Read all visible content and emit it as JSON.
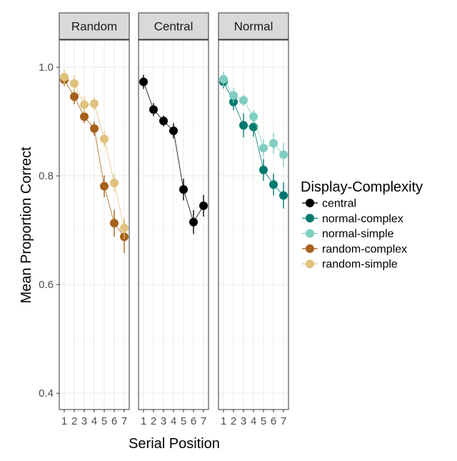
{
  "chart_data": {
    "type": "line",
    "xlabel": "Serial Position",
    "ylabel": "Mean Proportion Correct",
    "x": [
      1,
      2,
      3,
      4,
      5,
      6,
      7
    ],
    "xlim": [
      0.5,
      7.5
    ],
    "ylim": [
      0.37,
      1.05
    ],
    "y_ticks": [
      0.4,
      0.6,
      0.8,
      1.0
    ],
    "y_tick_labels": [
      "0.4",
      "0.6",
      "0.8",
      "1.0"
    ],
    "x_tick_labels": [
      "1",
      "2",
      "3",
      "4",
      "5",
      "6",
      "7"
    ],
    "grid": true,
    "legend": {
      "title": "Display-Complexity",
      "placement": "right",
      "entries": [
        {
          "name": "central",
          "color": "#000000"
        },
        {
          "name": "normal-complex",
          "color": "#01796f"
        },
        {
          "name": "normal-simple",
          "color": "#80cdc1"
        },
        {
          "name": "random-complex",
          "color": "#a6611a"
        },
        {
          "name": "random-simple",
          "color": "#dfc27d"
        }
      ]
    },
    "panels": [
      {
        "title": "Random",
        "series": [
          {
            "name": "random-complex",
            "color": "#a6611a",
            "values": [
              0.977,
              0.946,
              0.909,
              0.887,
              0.781,
              0.713,
              0.688
            ],
            "errors": [
              0.012,
              0.014,
              0.012,
              0.013,
              0.02,
              0.025,
              0.03
            ]
          },
          {
            "name": "random-simple",
            "color": "#dfc27d",
            "values": [
              0.982,
              0.97,
              0.931,
              0.933,
              0.868,
              0.787,
              0.704
            ],
            "errors": [
              0.014,
              0.015,
              0.015,
              0.012,
              0.014,
              0.016,
              0.02
            ]
          }
        ]
      },
      {
        "title": "Central",
        "series": [
          {
            "name": "central",
            "color": "#000000",
            "values": [
              0.973,
              0.922,
              0.901,
              0.883,
              0.775,
              0.715,
              0.745
            ],
            "errors": [
              0.013,
              0.012,
              0.01,
              0.014,
              0.02,
              0.022,
              0.02
            ]
          }
        ]
      },
      {
        "title": "Normal",
        "series": [
          {
            "name": "normal-complex",
            "color": "#01796f",
            "values": [
              0.973,
              0.936,
              0.893,
              0.89,
              0.811,
              0.784,
              0.764
            ],
            "errors": [
              0.012,
              0.015,
              0.022,
              0.018,
              0.02,
              0.02,
              0.024
            ]
          },
          {
            "name": "normal-simple",
            "color": "#80cdc1",
            "values": [
              0.978,
              0.948,
              0.939,
              0.909,
              0.851,
              0.86,
              0.839
            ],
            "errors": [
              0.014,
              0.014,
              0.01,
              0.013,
              0.016,
              0.019,
              0.022
            ]
          }
        ]
      }
    ]
  }
}
